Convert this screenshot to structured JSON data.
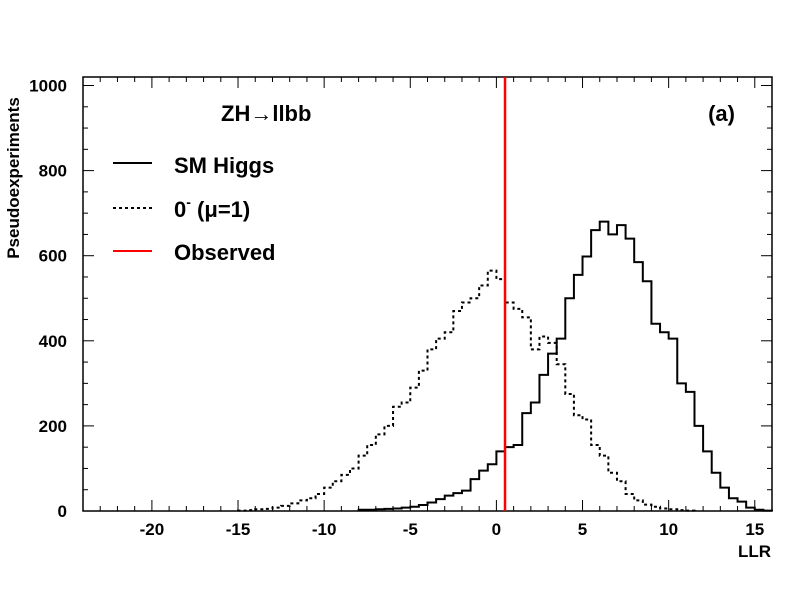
{
  "chart_data": {
    "type": "histogram",
    "title": "ZH→llbb",
    "panel_label": "(a)",
    "xlabel": "LLR",
    "ylabel": "Pseudoexperiments",
    "xlim": [
      -24,
      16
    ],
    "ylim": [
      0,
      1020
    ],
    "xticks": [
      -20,
      -15,
      -10,
      -5,
      0,
      5,
      10,
      15
    ],
    "yticks": [
      0,
      200,
      400,
      600,
      800,
      1000
    ],
    "bin_width": 0.5,
    "observed_llr": 0.5,
    "legend": {
      "position": "top-left",
      "entries": [
        {
          "label": "SM Higgs",
          "style": "solid",
          "color": "#000000"
        },
        {
          "label": "0",
          "superscript": "-",
          "suffix": " (μ=1)",
          "style": "dotted",
          "color": "#000000"
        },
        {
          "label": "Observed",
          "style": "solid",
          "color": "#ff0000"
        }
      ]
    },
    "series": [
      {
        "name": "SM Higgs",
        "style": "solid",
        "bin_start": -8,
        "values": [
          3,
          3,
          4,
          5,
          6,
          8,
          10,
          14,
          20,
          28,
          36,
          42,
          48,
          75,
          95,
          110,
          140,
          150,
          155,
          230,
          255,
          320,
          370,
          405,
          500,
          555,
          598,
          660,
          680,
          650,
          672,
          640,
          585,
          540,
          440,
          420,
          405,
          300,
          280,
          200,
          140,
          90,
          55,
          30,
          22,
          8,
          3,
          1
        ]
      },
      {
        "name": "0- (μ=1)",
        "style": "dotted",
        "bin_start": -15,
        "values": [
          1,
          2,
          4,
          5,
          8,
          12,
          18,
          25,
          30,
          40,
          55,
          70,
          85,
          100,
          130,
          155,
          180,
          200,
          245,
          255,
          290,
          330,
          380,
          405,
          420,
          470,
          490,
          500,
          530,
          565,
          545,
          490,
          475,
          455,
          380,
          410,
          395,
          345,
          275,
          225,
          215,
          155,
          130,
          90,
          70,
          40,
          25,
          15,
          10,
          6,
          4,
          2,
          1
        ]
      }
    ]
  }
}
